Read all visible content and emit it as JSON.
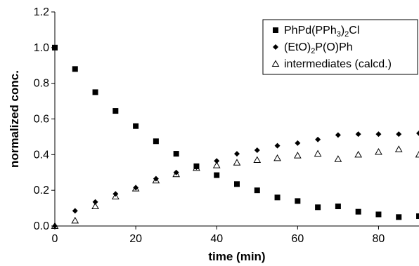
{
  "chart_data": {
    "type": "scatter",
    "xlabel": "time (min)",
    "ylabel": "normalized conc.",
    "xlim": [
      0,
      90
    ],
    "ylim": [
      0,
      1.2
    ],
    "x_ticks": [
      "0",
      "20",
      "40",
      "60",
      "80"
    ],
    "x_tick_values": [
      0,
      20,
      40,
      60,
      80
    ],
    "y_ticks": [
      "0.0",
      "0.2",
      "0.4",
      "0.6",
      "0.8",
      "1.0",
      "1.2"
    ],
    "y_tick_values": [
      0,
      0.2,
      0.4,
      0.6,
      0.8,
      1.0,
      1.2
    ],
    "grid": false,
    "legend_position": "top-right",
    "series": [
      {
        "name": "PhPd(PPh3)2Cl",
        "legend_parts": [
          {
            "text": "PhPd(PPh",
            "sub": false
          },
          {
            "text": "3",
            "sub": true
          },
          {
            "text": ")",
            "sub": false
          },
          {
            "text": "2",
            "sub": true
          },
          {
            "text": "Cl",
            "sub": false
          }
        ],
        "marker": "square",
        "color": "#000000",
        "x": [
          0,
          5,
          10,
          15,
          20,
          25,
          30,
          35,
          40,
          45,
          50,
          55,
          60,
          65,
          70,
          75,
          80,
          85,
          90
        ],
        "y": [
          1.0,
          0.88,
          0.75,
          0.645,
          0.56,
          0.475,
          0.405,
          0.335,
          0.285,
          0.235,
          0.2,
          0.16,
          0.14,
          0.105,
          0.11,
          0.08,
          0.065,
          0.05,
          0.055
        ]
      },
      {
        "name": "(EtO)2P(O)Ph",
        "legend_parts": [
          {
            "text": "(EtO)",
            "sub": false
          },
          {
            "text": "2",
            "sub": true
          },
          {
            "text": "P(O)Ph",
            "sub": false
          }
        ],
        "marker": "diamond",
        "color": "#000000",
        "x": [
          0,
          5,
          10,
          15,
          20,
          25,
          30,
          35,
          40,
          45,
          50,
          55,
          60,
          65,
          70,
          75,
          80,
          85,
          90
        ],
        "y": [
          0.0,
          0.085,
          0.135,
          0.18,
          0.215,
          0.265,
          0.3,
          0.33,
          0.365,
          0.405,
          0.425,
          0.45,
          0.465,
          0.485,
          0.51,
          0.515,
          0.515,
          0.515,
          0.52
        ]
      },
      {
        "name": "intermediates (calcd.)",
        "legend_parts": [
          {
            "text": "intermediates (calcd.)",
            "sub": false
          }
        ],
        "marker": "triangle-open",
        "color": "#000000",
        "x": [
          0,
          5,
          10,
          15,
          20,
          25,
          30,
          35,
          40,
          45,
          50,
          55,
          60,
          65,
          70,
          75,
          80,
          85,
          90
        ],
        "y": [
          0.0,
          0.03,
          0.11,
          0.165,
          0.21,
          0.255,
          0.29,
          0.325,
          0.34,
          0.355,
          0.37,
          0.38,
          0.395,
          0.405,
          0.375,
          0.4,
          0.415,
          0.43,
          0.4
        ]
      }
    ]
  }
}
